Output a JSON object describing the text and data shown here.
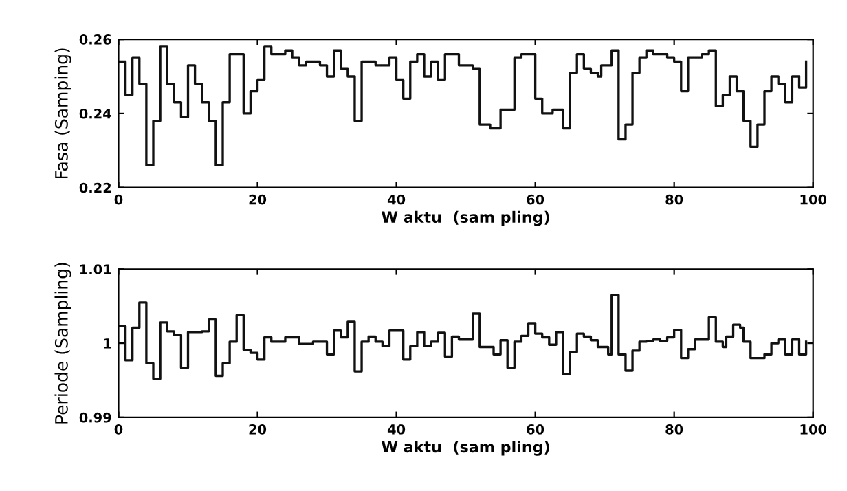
{
  "chart_data": [
    {
      "type": "step",
      "xlabel": "W aktu  (sam pling)",
      "ylabel": "Fasa (Samping)",
      "xlim": [
        0,
        100
      ],
      "ylim": [
        0.22,
        0.26
      ],
      "xticks": [
        0,
        20,
        40,
        60,
        80,
        100
      ],
      "yticks": [
        {
          "value": 0.22,
          "label": "0.22"
        },
        {
          "value": 0.24,
          "label": "0.24"
        },
        {
          "value": 0.26,
          "label": "0.26"
        }
      ],
      "grid": false,
      "marker": "none",
      "line_style": "solid",
      "series": [
        {
          "color": "#111111",
          "x": [
            0,
            1,
            2,
            3,
            4,
            5,
            6,
            7,
            8,
            9,
            10,
            11,
            12,
            13,
            14,
            15,
            16,
            18,
            19,
            20,
            21,
            22,
            24,
            25,
            26,
            27,
            28,
            29,
            30,
            31,
            32,
            33,
            34,
            35,
            37,
            39,
            40,
            41,
            42,
            43,
            44,
            45,
            46,
            47,
            49,
            51,
            52,
            53.5,
            55,
            57,
            58,
            60,
            61,
            62.5,
            64,
            65,
            66,
            67,
            68,
            69,
            69.5,
            71,
            72,
            73,
            74,
            75,
            76,
            77,
            78,
            79,
            80,
            81,
            82,
            84,
            85,
            86,
            87,
            88,
            89,
            90,
            91,
            92,
            93,
            94,
            95,
            96,
            97,
            98,
            99
          ],
          "values": [
            0.254,
            0.245,
            0.255,
            0.248,
            0.226,
            0.238,
            0.258,
            0.248,
            0.243,
            0.239,
            0.253,
            0.248,
            0.243,
            0.238,
            0.226,
            0.243,
            0.256,
            0.24,
            0.246,
            0.249,
            0.258,
            0.256,
            0.257,
            0.255,
            0.253,
            0.254,
            0.254,
            0.253,
            0.25,
            0.257,
            0.252,
            0.25,
            0.238,
            0.254,
            0.253,
            0.255,
            0.249,
            0.244,
            0.254,
            0.256,
            0.25,
            0.254,
            0.249,
            0.256,
            0.253,
            0.252,
            0.237,
            0.236,
            0.241,
            0.255,
            0.256,
            0.244,
            0.24,
            0.241,
            0.236,
            0.251,
            0.256,
            0.252,
            0.251,
            0.25,
            0.253,
            0.257,
            0.233,
            0.237,
            0.251,
            0.255,
            0.257,
            0.256,
            0.256,
            0.255,
            0.254,
            0.246,
            0.255,
            0.256,
            0.257,
            0.242,
            0.245,
            0.25,
            0.246,
            0.238,
            0.231,
            0.237,
            0.246,
            0.25,
            0.248,
            0.243,
            0.25,
            0.247,
            0.254
          ]
        }
      ]
    },
    {
      "type": "step",
      "xlabel": "W aktu  (sam pling)",
      "ylabel": "Periode (Sampling)",
      "xlim": [
        0,
        100
      ],
      "ylim": [
        0.99,
        1.01
      ],
      "xticks": [
        0,
        20,
        40,
        60,
        80,
        100
      ],
      "yticks": [
        0.99,
        1,
        1.01
      ],
      "grid": false,
      "marker": "none",
      "line_style": "solid",
      "series": [
        {
          "color": "#111111",
          "x": [
            0,
            1,
            2,
            3,
            4,
            5,
            6,
            7,
            8,
            9,
            10,
            12,
            13,
            14,
            15,
            16,
            17,
            18,
            19,
            20,
            21,
            22,
            24,
            26,
            28,
            30,
            31,
            32,
            33,
            34,
            35,
            36,
            37,
            38,
            39,
            41,
            42,
            43,
            44,
            45,
            46,
            47,
            48,
            49,
            51,
            52,
            54,
            55,
            56,
            57,
            58,
            59,
            60,
            61,
            62,
            63,
            64,
            65,
            66,
            67,
            68,
            69,
            70.5,
            71,
            72,
            73,
            74,
            75,
            76,
            77,
            78,
            79,
            80,
            81,
            82,
            83,
            85,
            86,
            87,
            87.5,
            88.5,
            89.5,
            90,
            91,
            93,
            94,
            95,
            96,
            97,
            98,
            99
          ],
          "values": [
            1.0023,
            0.9977,
            1.0021,
            1.0055,
            0.9973,
            0.9952,
            1.0028,
            1.0016,
            1.0011,
            0.9967,
            1.0015,
            1.0016,
            1.0032,
            0.9956,
            0.9973,
            1.0002,
            1.0038,
            0.9991,
            0.9987,
            0.9978,
            1.0008,
            1.0002,
            1.0008,
            0.9999,
            1.0002,
            0.9985,
            1.0017,
            1.0008,
            1.0029,
            0.9962,
            1.0002,
            1.0009,
            1.0002,
            0.9996,
            1.0017,
            0.9978,
            0.9996,
            1.0015,
            0.9996,
            1.0002,
            1.0014,
            0.9982,
            1.0009,
            1.0005,
            1.004,
            0.9995,
            0.9985,
            1.0004,
            0.9967,
            1.0002,
            1.001,
            1.0027,
            1.0013,
            1.0008,
            0.9998,
            1.0015,
            0.9958,
            0.9988,
            1.0013,
            1.0009,
            1.0004,
            0.9995,
            0.9985,
            1.0065,
            0.9985,
            0.9963,
            0.999,
            1.0002,
            1.0003,
            1.0005,
            1.0003,
            1.0008,
            1.0018,
            0.998,
            0.9992,
            1.0005,
            1.0035,
            1.0002,
            0.9995,
            1.0009,
            1.0025,
            1.0021,
            1.0002,
            0.998,
            0.9985,
            1.0,
            1.0005,
            0.9985,
            1.0005,
            0.9985,
            1.0002
          ]
        }
      ]
    }
  ]
}
